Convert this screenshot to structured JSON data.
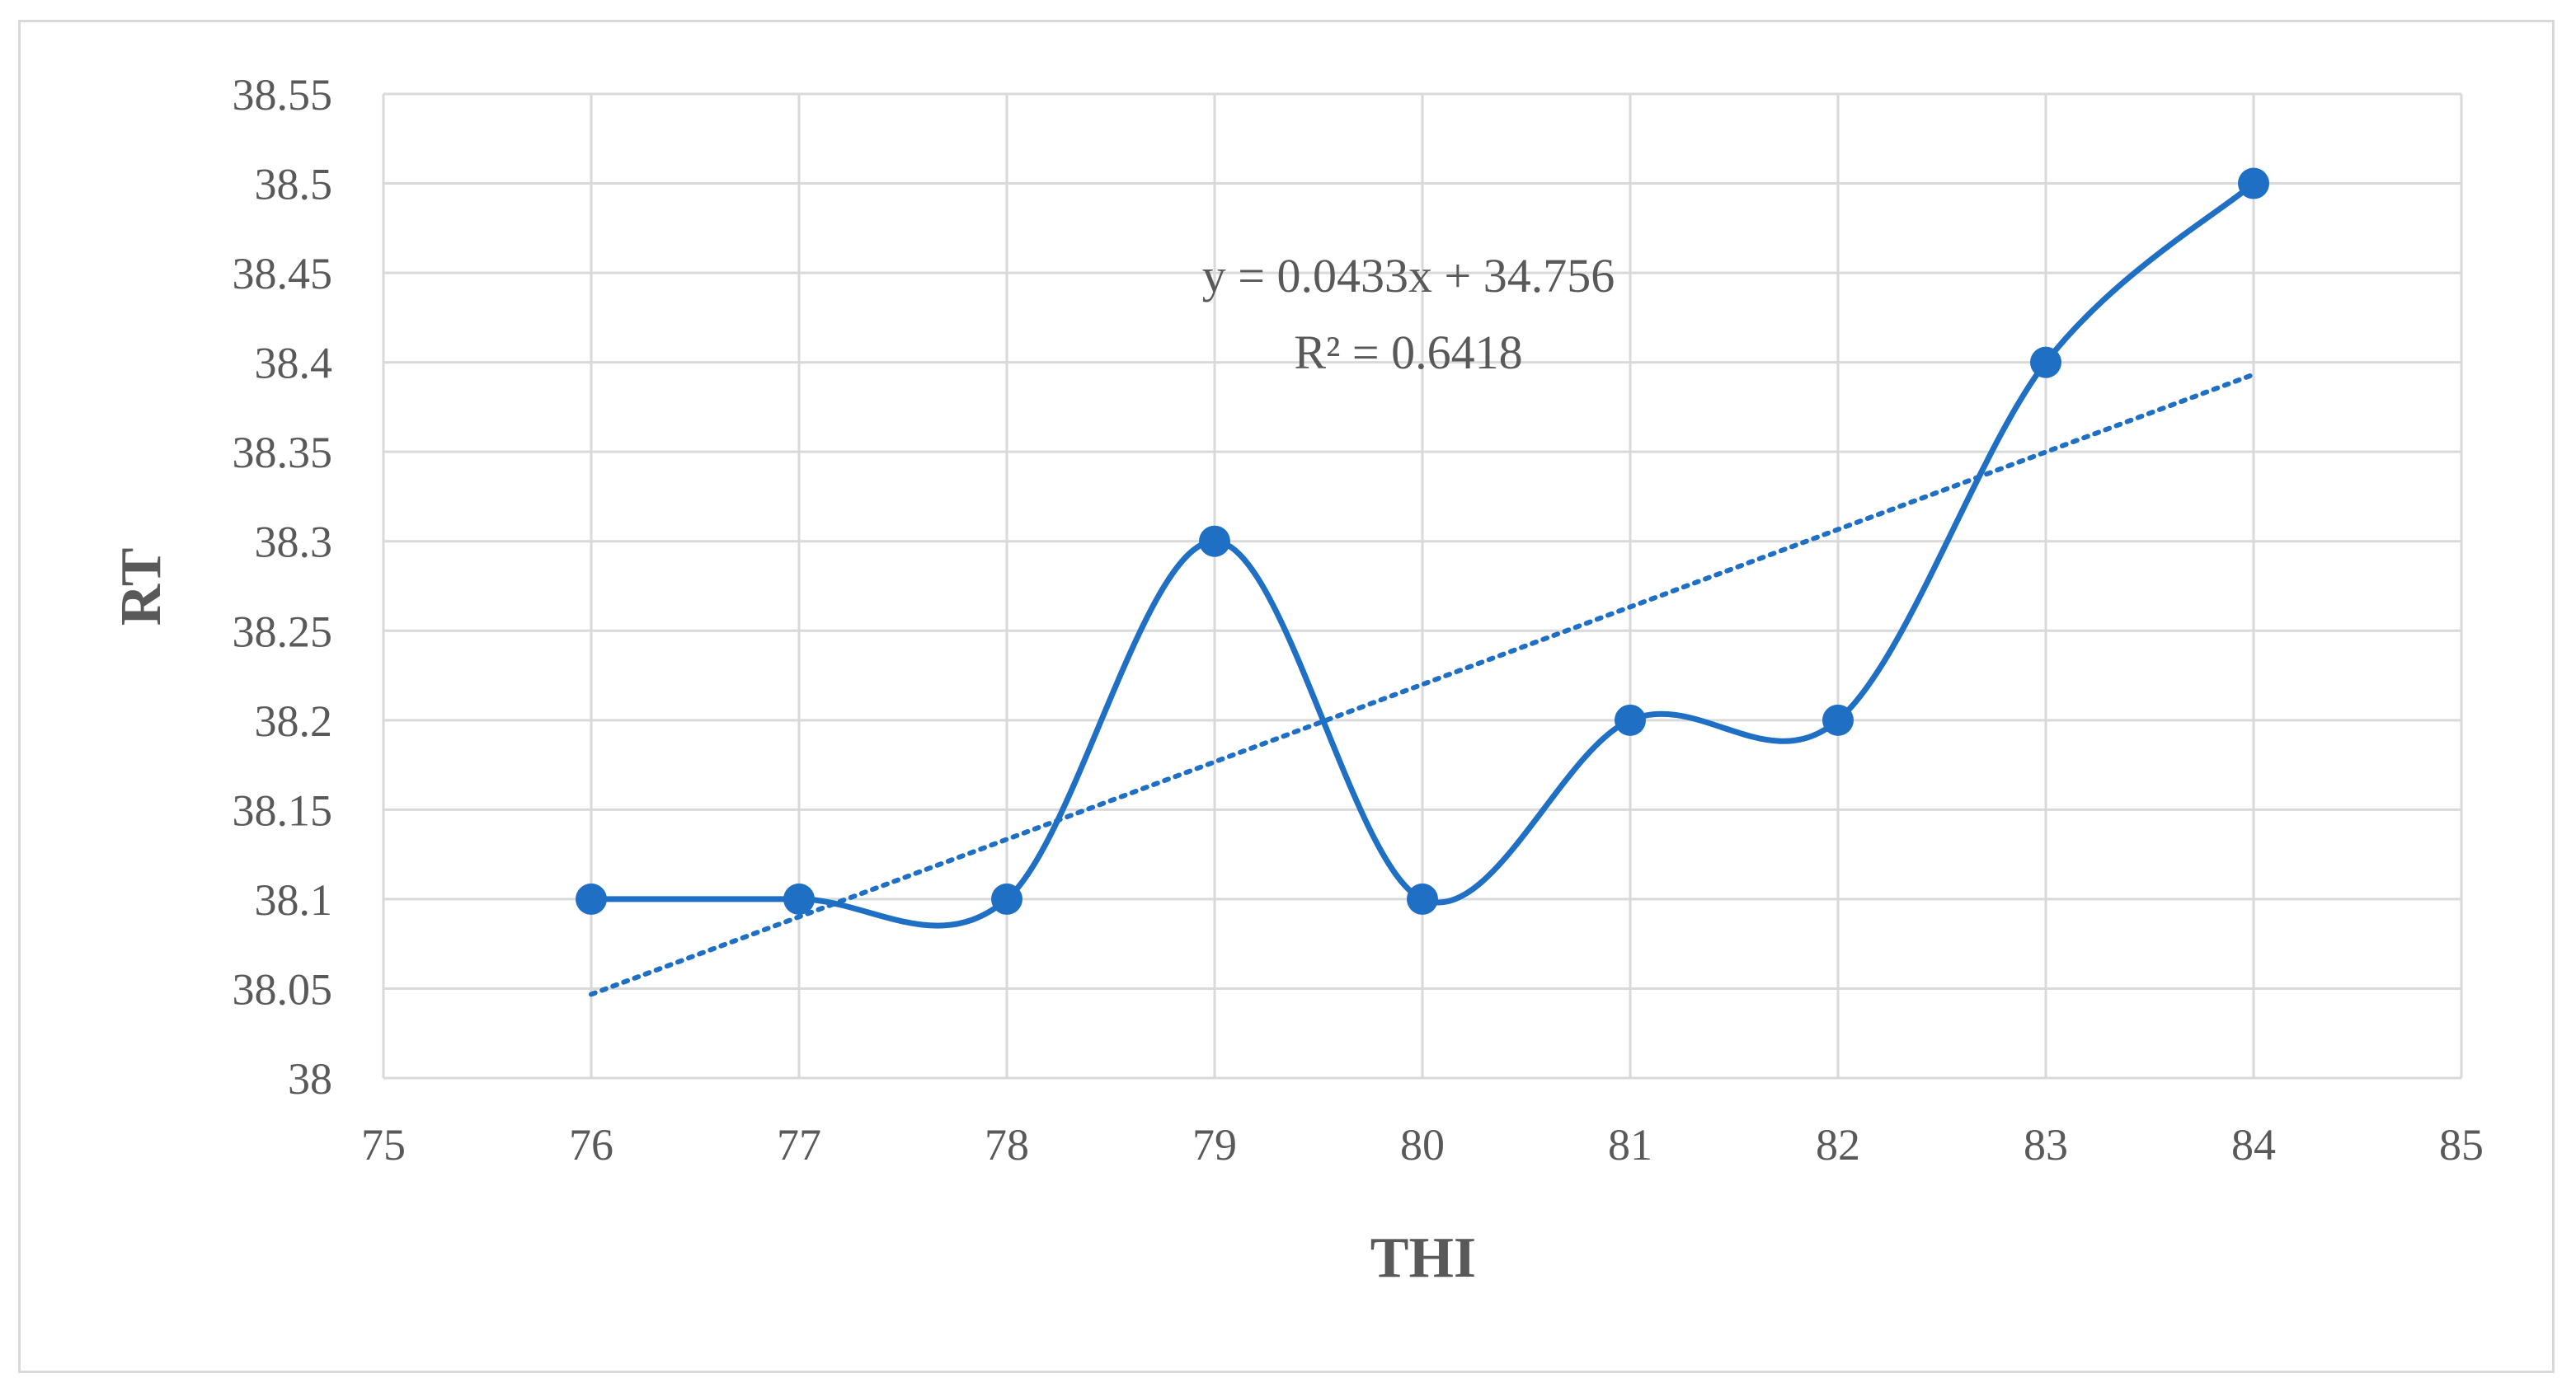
{
  "chart_data": {
    "type": "scatter",
    "xlabel": "THI",
    "ylabel": "RT",
    "xlim": [
      75,
      85
    ],
    "ylim": [
      38,
      38.55
    ],
    "x_ticks": [
      "75",
      "76",
      "77",
      "78",
      "79",
      "80",
      "81",
      "82",
      "83",
      "84",
      "85"
    ],
    "y_ticks": [
      "38",
      "38.05",
      "38.1",
      "38.15",
      "38.2",
      "38.25",
      "38.3",
      "38.35",
      "38.4",
      "38.45",
      "38.5",
      "38.55"
    ],
    "grid": true,
    "series": [
      {
        "line": "smooth",
        "markers": true,
        "color": "#1f6fc5",
        "x": [
          76,
          77,
          78,
          79,
          80,
          81,
          82,
          83,
          84
        ],
        "y": [
          38.1,
          38.1,
          38.1,
          38.3,
          38.1,
          38.2,
          38.2,
          38.4,
          38.5
        ]
      }
    ],
    "trendline": {
      "type": "linear",
      "style": "dotted",
      "color": "#1f6fc5",
      "slope": 0.0433,
      "intercept": 34.756,
      "x_range": [
        76,
        84
      ],
      "equation": "y = 0.0433x + 34.756",
      "r_squared": "R² = 0.6418"
    }
  }
}
